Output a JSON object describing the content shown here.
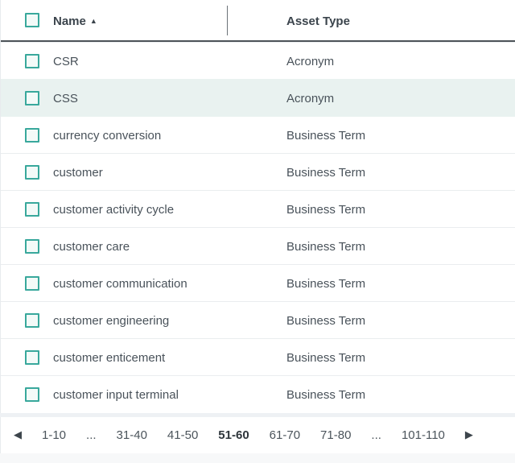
{
  "table": {
    "columns": [
      {
        "label": "Name",
        "sorted": "ascending"
      },
      {
        "label": "Asset Type",
        "sorted": "none"
      }
    ],
    "sort_icon": "▲",
    "rows": [
      {
        "name": "CSR",
        "asset_type": "Acronym",
        "highlighted": false
      },
      {
        "name": "CSS",
        "asset_type": "Acronym",
        "highlighted": true
      },
      {
        "name": "currency conversion",
        "asset_type": "Business Term",
        "highlighted": false
      },
      {
        "name": "customer",
        "asset_type": "Business Term",
        "highlighted": false
      },
      {
        "name": "customer activity cycle",
        "asset_type": "Business Term",
        "highlighted": false
      },
      {
        "name": "customer care",
        "asset_type": "Business Term",
        "highlighted": false
      },
      {
        "name": "customer communication",
        "asset_type": "Business Term",
        "highlighted": false
      },
      {
        "name": "customer engineering",
        "asset_type": "Business Term",
        "highlighted": false
      },
      {
        "name": "customer enticement",
        "asset_type": "Business Term",
        "highlighted": false
      },
      {
        "name": "customer input terminal",
        "asset_type": "Business Term",
        "highlighted": false
      }
    ]
  },
  "pagination": {
    "prev_icon": "◀",
    "next_icon": "▶",
    "items": [
      {
        "label": "1-10",
        "current": false
      },
      {
        "label": "...",
        "current": false
      },
      {
        "label": "31-40",
        "current": false
      },
      {
        "label": "41-50",
        "current": false
      },
      {
        "label": "51-60",
        "current": true
      },
      {
        "label": "61-70",
        "current": false
      },
      {
        "label": "71-80",
        "current": false
      },
      {
        "label": "...",
        "current": false
      },
      {
        "label": "101-110",
        "current": false
      }
    ]
  },
  "colors": {
    "accent_teal": "#39a89c",
    "highlight_row_bg": "#e9f2f0",
    "header_text": "#3b444c",
    "body_text": "#49525a",
    "header_border": "#4d5358",
    "row_separator": "#eaedef"
  }
}
